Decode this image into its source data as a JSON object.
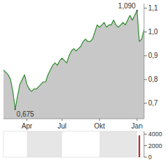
{
  "chart_data": [
    {
      "type": "area",
      "categories": [
        null,
        null,
        null,
        null,
        null,
        null,
        null,
        null,
        null,
        null,
        "Apr",
        null,
        null,
        null,
        null,
        null,
        null,
        null,
        null,
        null,
        null,
        null,
        null,
        null,
        null,
        "Jul",
        null,
        null,
        null,
        null,
        null,
        null,
        null,
        null,
        null,
        null,
        null,
        null,
        null,
        null,
        null,
        "Okt",
        null,
        null,
        null,
        null,
        null,
        null,
        null,
        null,
        null,
        null,
        null,
        null,
        null,
        null,
        null,
        "Jan",
        null,
        null,
        null
      ],
      "values": [
        0.84,
        0.83,
        0.82,
        0.8,
        0.75,
        0.675,
        0.73,
        0.78,
        0.8,
        0.82,
        0.78,
        0.76,
        0.75,
        0.76,
        0.76,
        0.77,
        0.78,
        0.79,
        0.79,
        0.82,
        0.84,
        0.86,
        0.87,
        0.86,
        0.88,
        0.89,
        0.88,
        0.87,
        0.9,
        0.92,
        0.93,
        0.92,
        0.93,
        0.94,
        0.96,
        0.97,
        0.96,
        0.96,
        0.97,
        1.0,
        1.03,
        1.02,
        1.03,
        1.04,
        1.02,
        1.03,
        1.03,
        1.05,
        1.03,
        1.02,
        1.03,
        1.04,
        1.03,
        1.05,
        1.07,
        1.05,
        1.07,
        1.09,
        0.96,
        0.97,
        1.01
      ],
      "color": "#2e8b2e",
      "ylim": [
        0.635,
        1.12
      ],
      "yticks": [
        {
          "value": 0.7,
          "label": "0,7"
        },
        {
          "value": 0.8,
          "label": "0,8"
        },
        {
          "value": 0.9,
          "label": "0,9"
        },
        {
          "value": 1.0,
          "label": "1,0"
        },
        {
          "value": 1.1,
          "label": "1,1"
        }
      ],
      "grid": false,
      "annotations": [
        {
          "label": "1,090",
          "value": 1.09,
          "index": 57
        },
        {
          "label": "0,675",
          "value": 0.675,
          "index": 5
        }
      ]
    },
    {
      "type": "bar",
      "values": [
        0,
        0,
        0,
        0,
        0,
        0,
        0,
        0,
        0,
        0,
        0,
        0,
        0,
        0,
        0,
        0,
        0,
        0,
        0,
        0,
        0,
        0,
        0,
        0,
        0,
        0,
        0,
        0,
        0,
        0,
        0,
        0,
        0,
        0,
        0,
        0,
        0,
        0,
        0,
        0,
        0,
        0,
        0,
        0,
        0,
        0,
        0,
        0,
        0,
        0,
        0,
        0,
        0,
        0,
        0,
        0,
        0,
        0,
        3800,
        0,
        0
      ],
      "color": "#a01818",
      "ylim": [
        0,
        4500
      ],
      "yticks": [
        0,
        2000,
        4000
      ],
      "tick_labels": "y",
      "grid": false
    }
  ]
}
